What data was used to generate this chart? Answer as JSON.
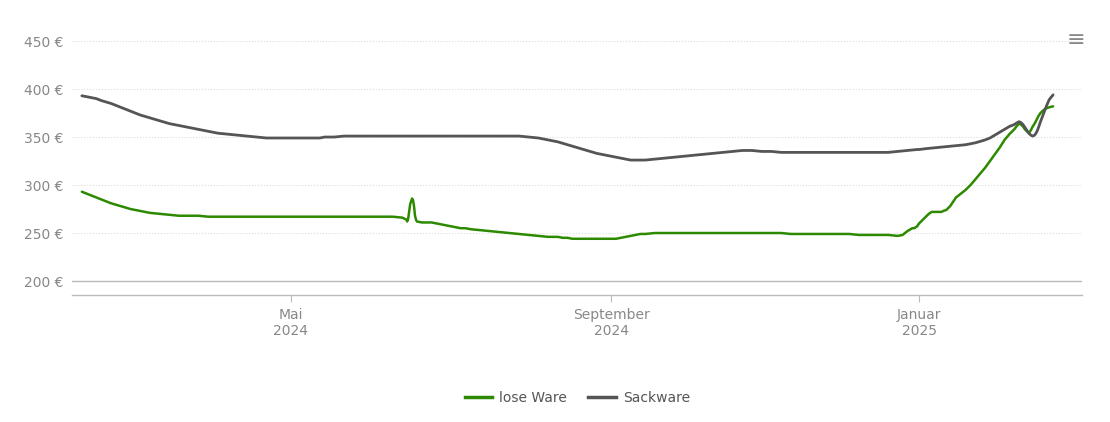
{
  "ylabel_ticks": [
    "200 €",
    "250 €",
    "300 €",
    "350 €",
    "400 €",
    "450 €"
  ],
  "yticks": [
    200,
    250,
    300,
    350,
    400,
    450
  ],
  "ylim": [
    185,
    462
  ],
  "xtick_labels": [
    "Mai\n2024",
    "September\n2024",
    "Januar\n2025"
  ],
  "xtick_positions": [
    0.215,
    0.545,
    0.862
  ],
  "background_color": "#ffffff",
  "grid_color": "#dddddd",
  "lose_ware_color": "#2d8a00",
  "sackware_color": "#555555",
  "legend_labels": [
    "lose Ware",
    "Sackware"
  ],
  "lose_ware": [
    0.0,
    293,
    0.005,
    291,
    0.01,
    289,
    0.015,
    287,
    0.02,
    285,
    0.025,
    283,
    0.03,
    281,
    0.04,
    278,
    0.05,
    275,
    0.06,
    273,
    0.07,
    271,
    0.08,
    270,
    0.09,
    269,
    0.1,
    268,
    0.11,
    268,
    0.12,
    268,
    0.13,
    267,
    0.14,
    267,
    0.15,
    267,
    0.16,
    267,
    0.17,
    267,
    0.18,
    267,
    0.19,
    267,
    0.2,
    267,
    0.21,
    267,
    0.215,
    267,
    0.22,
    267,
    0.23,
    267,
    0.24,
    267,
    0.25,
    267,
    0.26,
    267,
    0.27,
    267,
    0.28,
    267,
    0.29,
    267,
    0.3,
    267,
    0.31,
    267,
    0.315,
    267,
    0.32,
    267,
    0.33,
    266,
    0.334,
    264,
    0.335,
    262,
    0.336,
    265,
    0.338,
    280,
    0.34,
    286,
    0.341,
    284,
    0.342,
    278,
    0.343,
    268,
    0.344,
    264,
    0.345,
    262,
    0.35,
    261,
    0.355,
    261,
    0.36,
    261,
    0.365,
    260,
    0.37,
    259,
    0.375,
    258,
    0.38,
    257,
    0.385,
    256,
    0.39,
    255,
    0.395,
    255,
    0.4,
    254,
    0.41,
    253,
    0.42,
    252,
    0.43,
    251,
    0.44,
    250,
    0.45,
    249,
    0.46,
    248,
    0.47,
    247,
    0.48,
    246,
    0.49,
    246,
    0.495,
    245,
    0.5,
    245,
    0.505,
    244,
    0.51,
    244,
    0.515,
    244,
    0.52,
    244,
    0.525,
    244,
    0.53,
    244,
    0.535,
    244,
    0.54,
    244,
    0.545,
    244,
    0.55,
    244,
    0.555,
    245,
    0.56,
    246,
    0.565,
    247,
    0.57,
    248,
    0.575,
    249,
    0.58,
    249,
    0.59,
    250,
    0.6,
    250,
    0.61,
    250,
    0.62,
    250,
    0.63,
    250,
    0.64,
    250,
    0.65,
    250,
    0.66,
    250,
    0.67,
    250,
    0.68,
    250,
    0.69,
    250,
    0.7,
    250,
    0.71,
    250,
    0.72,
    250,
    0.73,
    249,
    0.74,
    249,
    0.75,
    249,
    0.76,
    249,
    0.77,
    249,
    0.78,
    249,
    0.79,
    249,
    0.8,
    248,
    0.81,
    248,
    0.82,
    248,
    0.83,
    248,
    0.84,
    247,
    0.845,
    248,
    0.85,
    252,
    0.855,
    255,
    0.857,
    255,
    0.86,
    257,
    0.862,
    260,
    0.865,
    263,
    0.867,
    265,
    0.87,
    268,
    0.872,
    270,
    0.875,
    272,
    0.877,
    272,
    0.88,
    272,
    0.882,
    272,
    0.885,
    272,
    0.887,
    273,
    0.89,
    274,
    0.892,
    276,
    0.894,
    278,
    0.896,
    281,
    0.898,
    284,
    0.9,
    287,
    0.905,
    291,
    0.91,
    295,
    0.915,
    300,
    0.92,
    306,
    0.925,
    312,
    0.93,
    318,
    0.935,
    325,
    0.94,
    332,
    0.945,
    339,
    0.95,
    347,
    0.955,
    353,
    0.96,
    358,
    0.963,
    362,
    0.965,
    364,
    0.967,
    363,
    0.969,
    361,
    0.971,
    358,
    0.973,
    356,
    0.975,
    354,
    0.977,
    357,
    0.979,
    361,
    0.981,
    364,
    0.983,
    368,
    0.985,
    372,
    0.987,
    375,
    0.99,
    378,
    0.993,
    380,
    0.996,
    381,
    1.0,
    382
  ],
  "sackware": [
    0.0,
    393,
    0.005,
    392,
    0.01,
    391,
    0.015,
    390,
    0.02,
    388,
    0.03,
    385,
    0.04,
    381,
    0.05,
    377,
    0.06,
    373,
    0.07,
    370,
    0.08,
    367,
    0.09,
    364,
    0.1,
    362,
    0.11,
    360,
    0.12,
    358,
    0.13,
    356,
    0.14,
    354,
    0.15,
    353,
    0.16,
    352,
    0.17,
    351,
    0.18,
    350,
    0.19,
    349,
    0.2,
    349,
    0.21,
    349,
    0.215,
    349,
    0.22,
    349,
    0.23,
    349,
    0.235,
    349,
    0.24,
    349,
    0.245,
    349,
    0.25,
    350,
    0.255,
    350,
    0.26,
    350,
    0.27,
    351,
    0.28,
    351,
    0.29,
    351,
    0.3,
    351,
    0.31,
    351,
    0.32,
    351,
    0.33,
    351,
    0.34,
    351,
    0.35,
    351,
    0.36,
    351,
    0.37,
    351,
    0.38,
    351,
    0.39,
    351,
    0.4,
    351,
    0.41,
    351,
    0.42,
    351,
    0.43,
    351,
    0.44,
    351,
    0.45,
    351,
    0.46,
    350,
    0.47,
    349,
    0.48,
    347,
    0.49,
    345,
    0.5,
    342,
    0.51,
    339,
    0.52,
    336,
    0.53,
    333,
    0.54,
    331,
    0.545,
    330,
    0.55,
    329,
    0.555,
    328,
    0.56,
    327,
    0.565,
    326,
    0.57,
    326,
    0.58,
    326,
    0.59,
    327,
    0.6,
    328,
    0.61,
    329,
    0.62,
    330,
    0.63,
    331,
    0.64,
    332,
    0.65,
    333,
    0.66,
    334,
    0.67,
    335,
    0.68,
    336,
    0.69,
    336,
    0.7,
    335,
    0.71,
    335,
    0.72,
    334,
    0.73,
    334,
    0.74,
    334,
    0.75,
    334,
    0.76,
    334,
    0.77,
    334,
    0.78,
    334,
    0.79,
    334,
    0.8,
    334,
    0.81,
    334,
    0.82,
    334,
    0.83,
    334,
    0.84,
    335,
    0.85,
    336,
    0.86,
    337,
    0.862,
    337,
    0.87,
    338,
    0.88,
    339,
    0.89,
    340,
    0.9,
    341,
    0.91,
    342,
    0.92,
    344,
    0.93,
    347,
    0.935,
    349,
    0.94,
    352,
    0.945,
    355,
    0.95,
    358,
    0.955,
    361,
    0.96,
    363,
    0.963,
    365,
    0.965,
    366,
    0.967,
    365,
    0.969,
    363,
    0.971,
    360,
    0.973,
    357,
    0.975,
    354,
    0.977,
    352,
    0.979,
    351,
    0.981,
    352,
    0.983,
    355,
    0.985,
    360,
    0.987,
    366,
    0.99,
    374,
    0.993,
    382,
    0.996,
    389,
    1.0,
    394
  ]
}
